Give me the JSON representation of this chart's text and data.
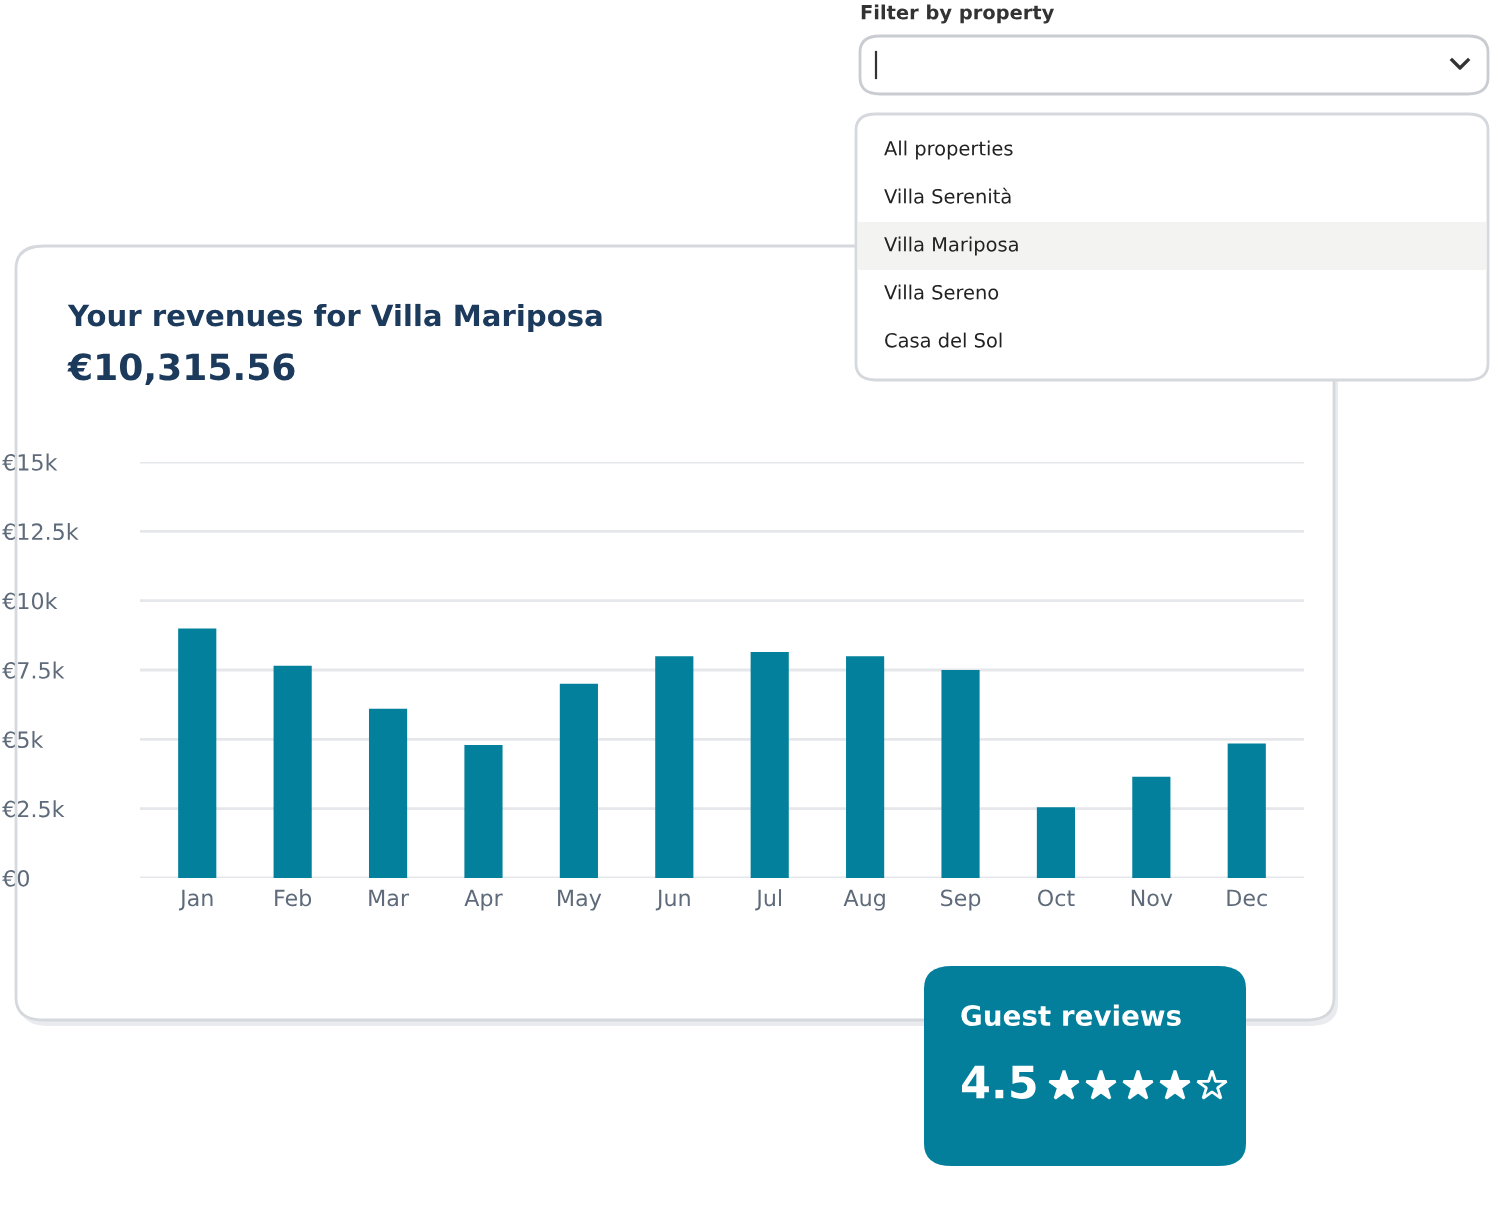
{
  "chart_data": {
    "type": "bar",
    "title": "Your revenues for Villa Mariposa",
    "subtitle": "€10,315.56",
    "categories": [
      "Jan",
      "Feb",
      "Mar",
      "Apr",
      "May",
      "Jun",
      "Jul",
      "Aug",
      "Sep",
      "Oct",
      "Nov",
      "Dec"
    ],
    "values": [
      9000,
      7650,
      6100,
      4800,
      7000,
      8000,
      8150,
      8000,
      7500,
      2550,
      3650,
      4850
    ],
    "color": "#03809b",
    "ylim": [
      0,
      15000
    ],
    "yticks": [
      {
        "value": 0,
        "label": "€0"
      },
      {
        "value": 2500,
        "label": "€2.5k"
      },
      {
        "value": 5000,
        "label": "€5k"
      },
      {
        "value": 7500,
        "label": "€7.5k"
      },
      {
        "value": 10000,
        "label": "€10k"
      },
      {
        "value": 12500,
        "label": "€12.5k"
      },
      {
        "value": 15000,
        "label": "€15k"
      }
    ],
    "grid": "y",
    "annotations": [
      "Filter by property",
      "All properties",
      "Villa Serenità",
      "Villa Mariposa",
      "Villa Sereno",
      "Casa del Sol",
      "Guest reviews",
      "4.5"
    ]
  }
}
